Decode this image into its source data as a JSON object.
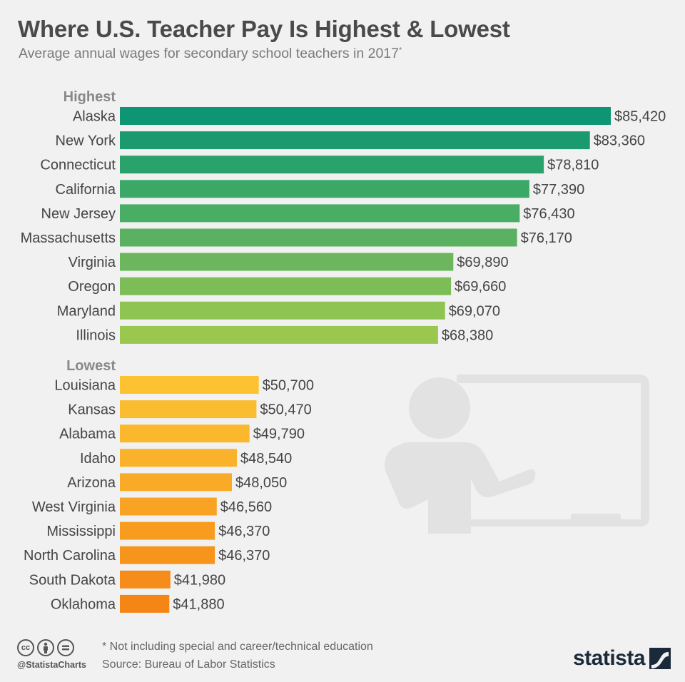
{
  "header": {
    "title": "Where U.S. Teacher Pay Is Highest & Lowest",
    "subtitle": "Average annual wages for secondary school teachers in 2017",
    "subtitle_marker": "*"
  },
  "chart_data": {
    "type": "bar",
    "orientation": "horizontal",
    "title": "Where U.S. Teacher Pay Is Highest & Lowest",
    "subtitle": "Average annual wages for secondary school teachers in 2017*",
    "value_prefix": "$",
    "groups": [
      {
        "label": "Highest",
        "categories": [
          "Alaska",
          "New York",
          "Connecticut",
          "California",
          "New Jersey",
          "Massachusetts",
          "Virginia",
          "Oregon",
          "Maryland",
          "Illinois"
        ],
        "values": [
          85420,
          83360,
          78810,
          77390,
          76430,
          76170,
          69890,
          69660,
          69070,
          68380
        ],
        "value_labels": [
          "$85,420",
          "$83,360",
          "$78,810",
          "$77,390",
          "$76,430",
          "$76,170",
          "$69,890",
          "$69,660",
          "$69,070",
          "$68,380"
        ],
        "colors": [
          "#0e9573",
          "#1c9a6f",
          "#2aa26c",
          "#3ba868",
          "#4aad64",
          "#5ab161",
          "#6cb75d",
          "#7dbd57",
          "#8ec452",
          "#9ac84e"
        ]
      },
      {
        "label": "Lowest",
        "categories": [
          "Louisiana",
          "Kansas",
          "Alabama",
          "Idaho",
          "Arizona",
          "West Virginia",
          "Mississippi",
          "North Carolina",
          "South Dakota",
          "Oklahoma"
        ],
        "values": [
          50700,
          50470,
          49790,
          48540,
          48050,
          46560,
          46370,
          46370,
          41980,
          41880
        ],
        "value_labels": [
          "$50,700",
          "$50,470",
          "$49,790",
          "$48,540",
          "$48,050",
          "$46,560",
          "$46,370",
          "$46,370",
          "$41,980",
          "$41,880"
        ],
        "colors": [
          "#fcc232",
          "#fbbd30",
          "#fbb82d",
          "#fab22b",
          "#f9ab27",
          "#f8a323",
          "#f89c20",
          "#f7941c",
          "#f68c19",
          "#f58515"
        ]
      }
    ],
    "axis_baseline_value": 37000,
    "axis_max_value": 85420,
    "grid": false,
    "legend": "none"
  },
  "footer": {
    "cc_icons": [
      "cc-icon",
      "by-icon",
      "nd-icon"
    ],
    "cc_text": "cc",
    "handle": "@StatistaCharts",
    "note": "* Not including special and career/technical education",
    "source": "Source: Bureau of Labor Statistics",
    "brand": "statista"
  },
  "colors": {
    "background": "#f1f1f1",
    "title": "#4a4a4a",
    "illustration": "#e2e2e2"
  }
}
